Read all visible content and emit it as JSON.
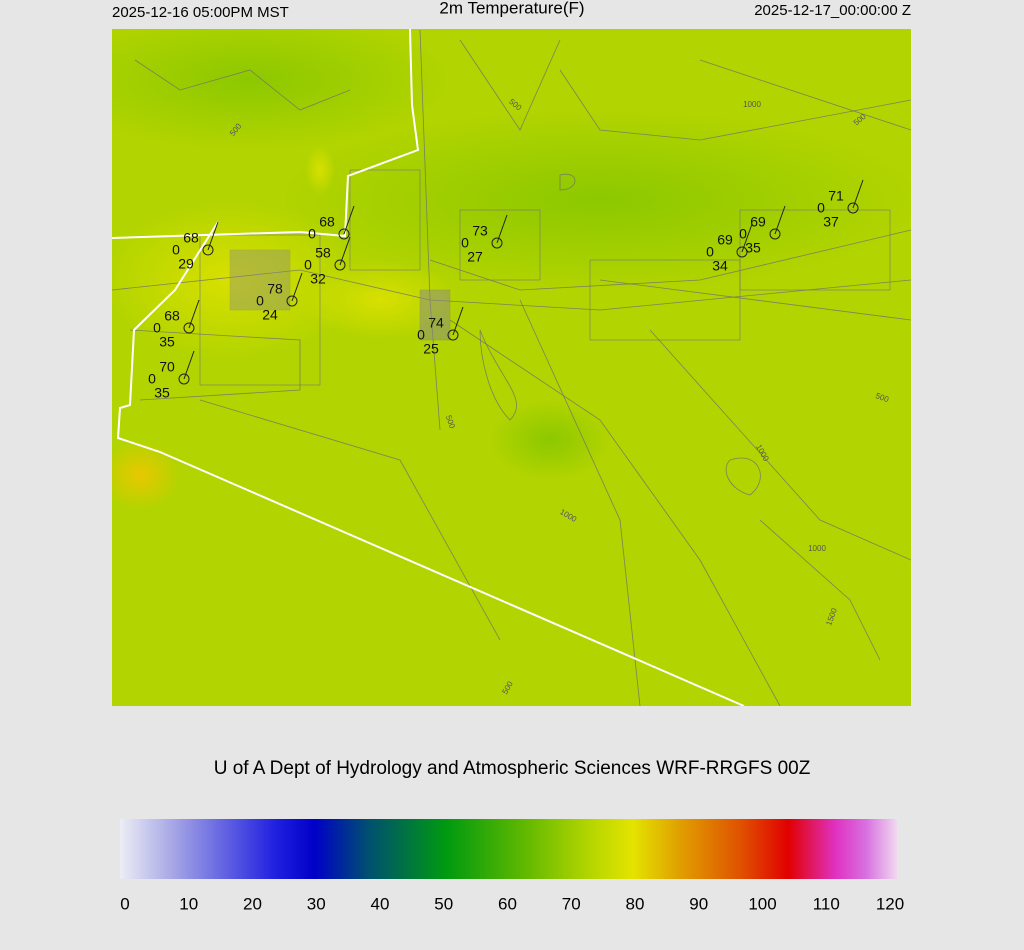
{
  "header": {
    "left": "2025-12-16 05:00PM MST",
    "title": "2m Temperature(F)",
    "right": "2025-12-17_00:00:00 Z"
  },
  "contour_labels": [
    "500",
    "500",
    "1000",
    "500",
    "500",
    "500",
    "1000",
    "1000",
    "1000",
    "1500",
    "500"
  ],
  "stations": [
    {
      "temp": 68,
      "wind": 0,
      "dew": 29
    },
    {
      "temp": 68,
      "wind": 0
    },
    {
      "temp": 58,
      "wind": 0,
      "dew": 32
    },
    {
      "temp": 78,
      "wind": 0,
      "dew": 24
    },
    {
      "temp": 68,
      "wind": 0,
      "dew": 35
    },
    {
      "temp": 70,
      "wind": 0,
      "dew": 35
    },
    {
      "temp": 73,
      "wind": 0,
      "dew": 27
    },
    {
      "temp": 74,
      "wind": 0,
      "dew": 25
    },
    {
      "temp": 69,
      "wind": 0,
      "dew": 34
    },
    {
      "temp": 69,
      "wind": 0,
      "dew": 35
    },
    {
      "temp": 71,
      "wind": 0,
      "dew": 37
    }
  ],
  "footer": "U of A Dept of Hydrology and Atmospheric Sciences WRF-RRGFS 00Z",
  "colorbar": {
    "ticks": [
      0,
      10,
      20,
      30,
      40,
      50,
      60,
      70,
      80,
      90,
      100,
      110,
      120
    ]
  }
}
